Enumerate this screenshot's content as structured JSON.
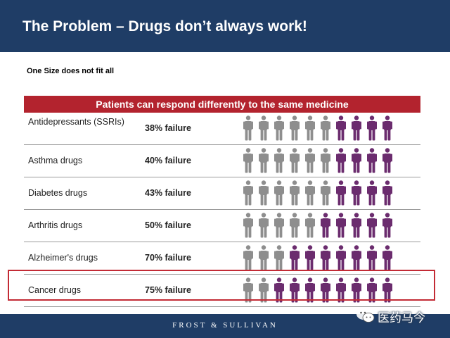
{
  "slide": {
    "title": "The Problem – Drugs don’t always work!",
    "subtitle": "One Size does not fit all"
  },
  "table": {
    "header": "Patients can respond differently to the same medicine",
    "rows": [
      {
        "drug": "Antidepressants (SSRIs)",
        "failure_label": "38% failure",
        "failed_figures": 4
      },
      {
        "drug": "Asthma drugs",
        "failure_label": "40% failure",
        "failed_figures": 4
      },
      {
        "drug": "Diabetes drugs",
        "failure_label": "43% failure",
        "failed_figures": 4
      },
      {
        "drug": "Arthritis drugs",
        "failure_label": "50% failure",
        "failed_figures": 5
      },
      {
        "drug": "Alzheimer's drugs",
        "failure_label": "70% failure",
        "failed_figures": 7
      },
      {
        "drug": "Cancer drugs",
        "failure_label": "75% failure",
        "failed_figures": 8
      }
    ],
    "total_figures": 10,
    "highlighted_row": "Cancer drugs"
  },
  "footer": {
    "brand": "FROST & SULLIVAN"
  },
  "watermark": {
    "text": "医药马今"
  },
  "colors": {
    "title_bar": "#1f3d66",
    "header_red": "#b3232e",
    "success_gray": "#8e8e8e",
    "failure_purple": "#6b2c6e",
    "highlight_border": "#c32b35"
  }
}
